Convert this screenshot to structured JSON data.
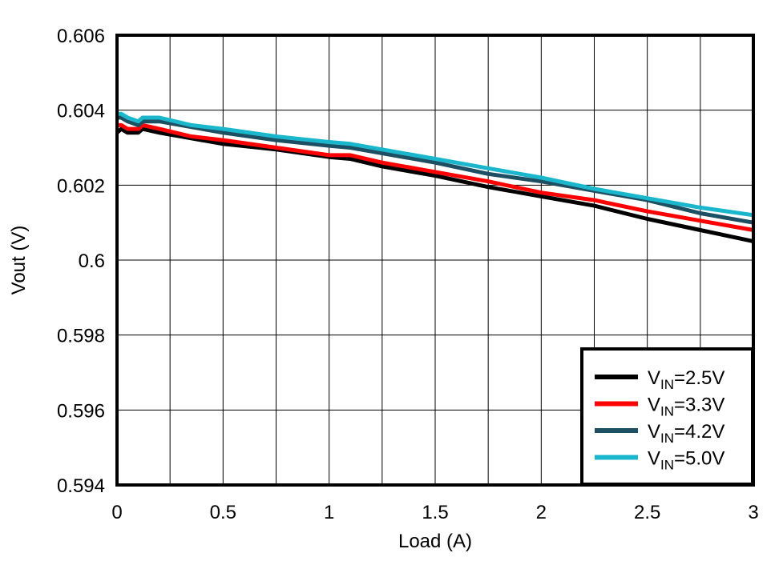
{
  "chart_data": {
    "type": "line",
    "title": "",
    "xlabel": "Load (A)",
    "ylabel": "Vout (V)",
    "xlim": [
      0,
      3
    ],
    "ylim": [
      0.594,
      0.606
    ],
    "xticks": [
      0,
      0.5,
      1,
      1.5,
      2,
      2.5,
      3
    ],
    "xtick_labels": [
      "0",
      "0.5",
      "1",
      "1.5",
      "2",
      "2.5",
      "3"
    ],
    "yticks": [
      0.594,
      0.596,
      0.598,
      0.6,
      0.602,
      0.604,
      0.606
    ],
    "ytick_labels": [
      "0.594",
      "0.596",
      "0.598",
      "0.6",
      "0.602",
      "0.604",
      "0.606"
    ],
    "grid": true,
    "legend_position": "bottom-right",
    "series": [
      {
        "name": "VIN=2.5V",
        "label_base": "V",
        "label_sub": "IN",
        "label_rest": "=2.5V",
        "color": "#000000",
        "x": [
          0,
          0.02,
          0.05,
          0.1,
          0.12,
          0.2,
          0.35,
          0.5,
          0.75,
          1,
          1.1,
          1.25,
          1.5,
          1.75,
          2,
          2.25,
          2.5,
          2.75,
          3
        ],
        "y": [
          0.6034,
          0.6035,
          0.6034,
          0.6034,
          0.6035,
          0.6034,
          0.60325,
          0.6031,
          0.60295,
          0.60275,
          0.6027,
          0.6025,
          0.60225,
          0.60195,
          0.6017,
          0.60145,
          0.6011,
          0.6008,
          0.6005
        ]
      },
      {
        "name": "VIN=3.3V",
        "label_base": "V",
        "label_sub": "IN",
        "label_rest": "=3.3V",
        "color": "#ff0000",
        "x": [
          0,
          0.02,
          0.05,
          0.1,
          0.12,
          0.2,
          0.35,
          0.5,
          0.75,
          1,
          1.1,
          1.25,
          1.5,
          1.75,
          2,
          2.25,
          2.5,
          2.75,
          3
        ],
        "y": [
          0.6036,
          0.6036,
          0.6035,
          0.6035,
          0.6036,
          0.6035,
          0.6033,
          0.6032,
          0.603,
          0.6028,
          0.6028,
          0.6026,
          0.60235,
          0.6021,
          0.6018,
          0.6016,
          0.6013,
          0.60105,
          0.6008
        ]
      },
      {
        "name": "VIN=4.2V",
        "label_base": "V",
        "label_sub": "IN",
        "label_rest": "=4.2V",
        "color": "#1b4f61",
        "x": [
          0,
          0.02,
          0.05,
          0.1,
          0.12,
          0.2,
          0.35,
          0.5,
          0.75,
          1,
          1.1,
          1.25,
          1.5,
          1.75,
          2,
          2.25,
          2.5,
          2.75,
          3
        ],
        "y": [
          0.6038,
          0.6038,
          0.6037,
          0.6036,
          0.6037,
          0.6037,
          0.60355,
          0.6034,
          0.6032,
          0.60305,
          0.603,
          0.60285,
          0.6026,
          0.6023,
          0.6021,
          0.60185,
          0.6016,
          0.60125,
          0.601
        ]
      },
      {
        "name": "VIN=5.0V",
        "label_base": "V",
        "label_sub": "IN",
        "label_rest": "=5.0V",
        "color": "#1ab7cc",
        "x": [
          0,
          0.02,
          0.05,
          0.1,
          0.12,
          0.2,
          0.35,
          0.5,
          0.75,
          1,
          1.1,
          1.25,
          1.5,
          1.75,
          2,
          2.25,
          2.5,
          2.75,
          3
        ],
        "y": [
          0.6039,
          0.6039,
          0.6038,
          0.6037,
          0.6038,
          0.6038,
          0.6036,
          0.6035,
          0.6033,
          0.60315,
          0.6031,
          0.60295,
          0.6027,
          0.60245,
          0.6022,
          0.6019,
          0.60165,
          0.6014,
          0.6012
        ]
      }
    ]
  }
}
